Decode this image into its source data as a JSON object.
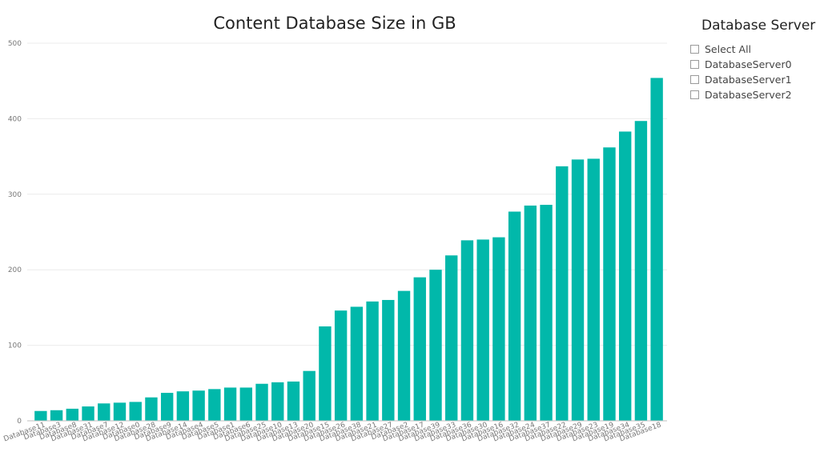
{
  "chart_data": {
    "type": "bar",
    "title": "Content Database Size in GB",
    "xlabel": "",
    "ylabel": "",
    "ylim": [
      0,
      500
    ],
    "yticks": [
      0,
      100,
      200,
      300,
      400,
      500
    ],
    "grid": true,
    "bar_color": "#01B8AA",
    "categories": [
      "Database11",
      "Database3",
      "Database8",
      "Database31",
      "Database7",
      "Database12",
      "Database0",
      "Database28",
      "Database9",
      "Database14",
      "Database4",
      "Database5",
      "Database1",
      "Database6",
      "Database25",
      "Database10",
      "Database13",
      "Database20",
      "Database15",
      "Database26",
      "Database38",
      "Database21",
      "Database27",
      "Database2",
      "Database17",
      "Database39",
      "Database33",
      "Database36",
      "Database30",
      "Database16",
      "Database32",
      "Database24",
      "Database37",
      "Database22",
      "Database29",
      "Database23",
      "Database19",
      "Database34",
      "Database35",
      "Database18"
    ],
    "values": [
      13,
      14,
      16,
      19,
      23,
      24,
      25,
      31,
      37,
      39,
      40,
      42,
      44,
      44,
      49,
      51,
      52,
      66,
      125,
      146,
      151,
      158,
      160,
      172,
      190,
      200,
      219,
      239,
      240,
      243,
      277,
      285,
      286,
      337,
      346,
      347,
      362,
      383,
      397,
      454
    ]
  },
  "slicer": {
    "title": "Database Server",
    "items": [
      {
        "label": "Select All"
      },
      {
        "label": "DatabaseServer0"
      },
      {
        "label": "DatabaseServer1"
      },
      {
        "label": "DatabaseServer2"
      }
    ]
  }
}
